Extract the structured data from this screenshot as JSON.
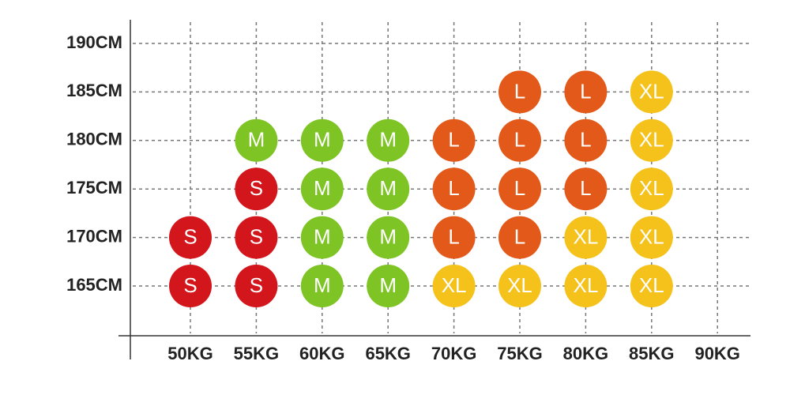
{
  "x_labels": [
    "50KG",
    "55KG",
    "60KG",
    "65KG",
    "70KG",
    "75KG",
    "80KG",
    "85KG",
    "90KG"
  ],
  "rows": [
    {
      "label": "190CM",
      "sizes": [
        null,
        null,
        null,
        null,
        null,
        null,
        null,
        null,
        null
      ]
    },
    {
      "label": "185CM",
      "sizes": [
        null,
        null,
        null,
        null,
        null,
        "L",
        "L",
        "XL",
        null
      ]
    },
    {
      "label": "180CM",
      "sizes": [
        null,
        "M",
        "M",
        "M",
        "L",
        "L",
        "L",
        "XL",
        null
      ]
    },
    {
      "label": "175CM",
      "sizes": [
        null,
        "S",
        "M",
        "M",
        "L",
        "L",
        "L",
        "XL",
        null
      ]
    },
    {
      "label": "170CM",
      "sizes": [
        "S",
        "S",
        "M",
        "M",
        "L",
        "L",
        "XL",
        "XL",
        null
      ]
    },
    {
      "label": "165CM",
      "sizes": [
        "S",
        "S",
        "M",
        "M",
        "XL",
        "XL",
        "XL",
        "XL",
        null
      ]
    }
  ],
  "colors": {
    "S": "#d3161b",
    "M": "#7dc424",
    "L": "#e2591a",
    "XL": "#f4c21a"
  }
}
